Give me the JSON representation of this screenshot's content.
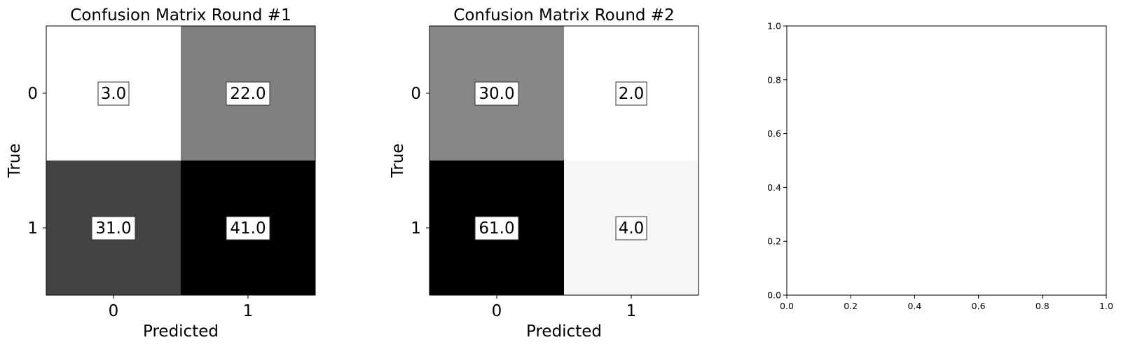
{
  "chart_data": [
    {
      "type": "heatmap",
      "title": "Confusion Matrix Round #1",
      "xlabel": "Predicted",
      "ylabel": "True",
      "x_tick_labels": [
        "0",
        "1"
      ],
      "y_tick_labels": [
        "0",
        "1"
      ],
      "colormap": "gray_r",
      "matrix": [
        [
          3.0,
          22.0
        ],
        [
          31.0,
          41.0
        ]
      ],
      "cell_labels": [
        [
          "3.0",
          "22.0"
        ],
        [
          "31.0",
          "41.0"
        ]
      ]
    },
    {
      "type": "heatmap",
      "title": "Confusion Matrix Round #2",
      "xlabel": "Predicted",
      "ylabel": "True",
      "x_tick_labels": [
        "0",
        "1"
      ],
      "y_tick_labels": [
        "0",
        "1"
      ],
      "colormap": "gray_r",
      "matrix": [
        [
          30.0,
          2.0
        ],
        [
          61.0,
          4.0
        ]
      ],
      "cell_labels": [
        [
          "30.0",
          "2.0"
        ],
        [
          "61.0",
          "4.0"
        ]
      ]
    },
    {
      "type": "scatter",
      "title": "",
      "xlabel": "",
      "ylabel": "",
      "xlim": [
        0.0,
        1.0
      ],
      "ylim": [
        0.0,
        1.0
      ],
      "x_tick_labels": [
        "0.0",
        "0.2",
        "0.4",
        "0.6",
        "0.8",
        "1.0"
      ],
      "y_tick_labels": [
        "0.0",
        "0.2",
        "0.4",
        "0.6",
        "0.8",
        "1.0"
      ],
      "series": []
    }
  ]
}
